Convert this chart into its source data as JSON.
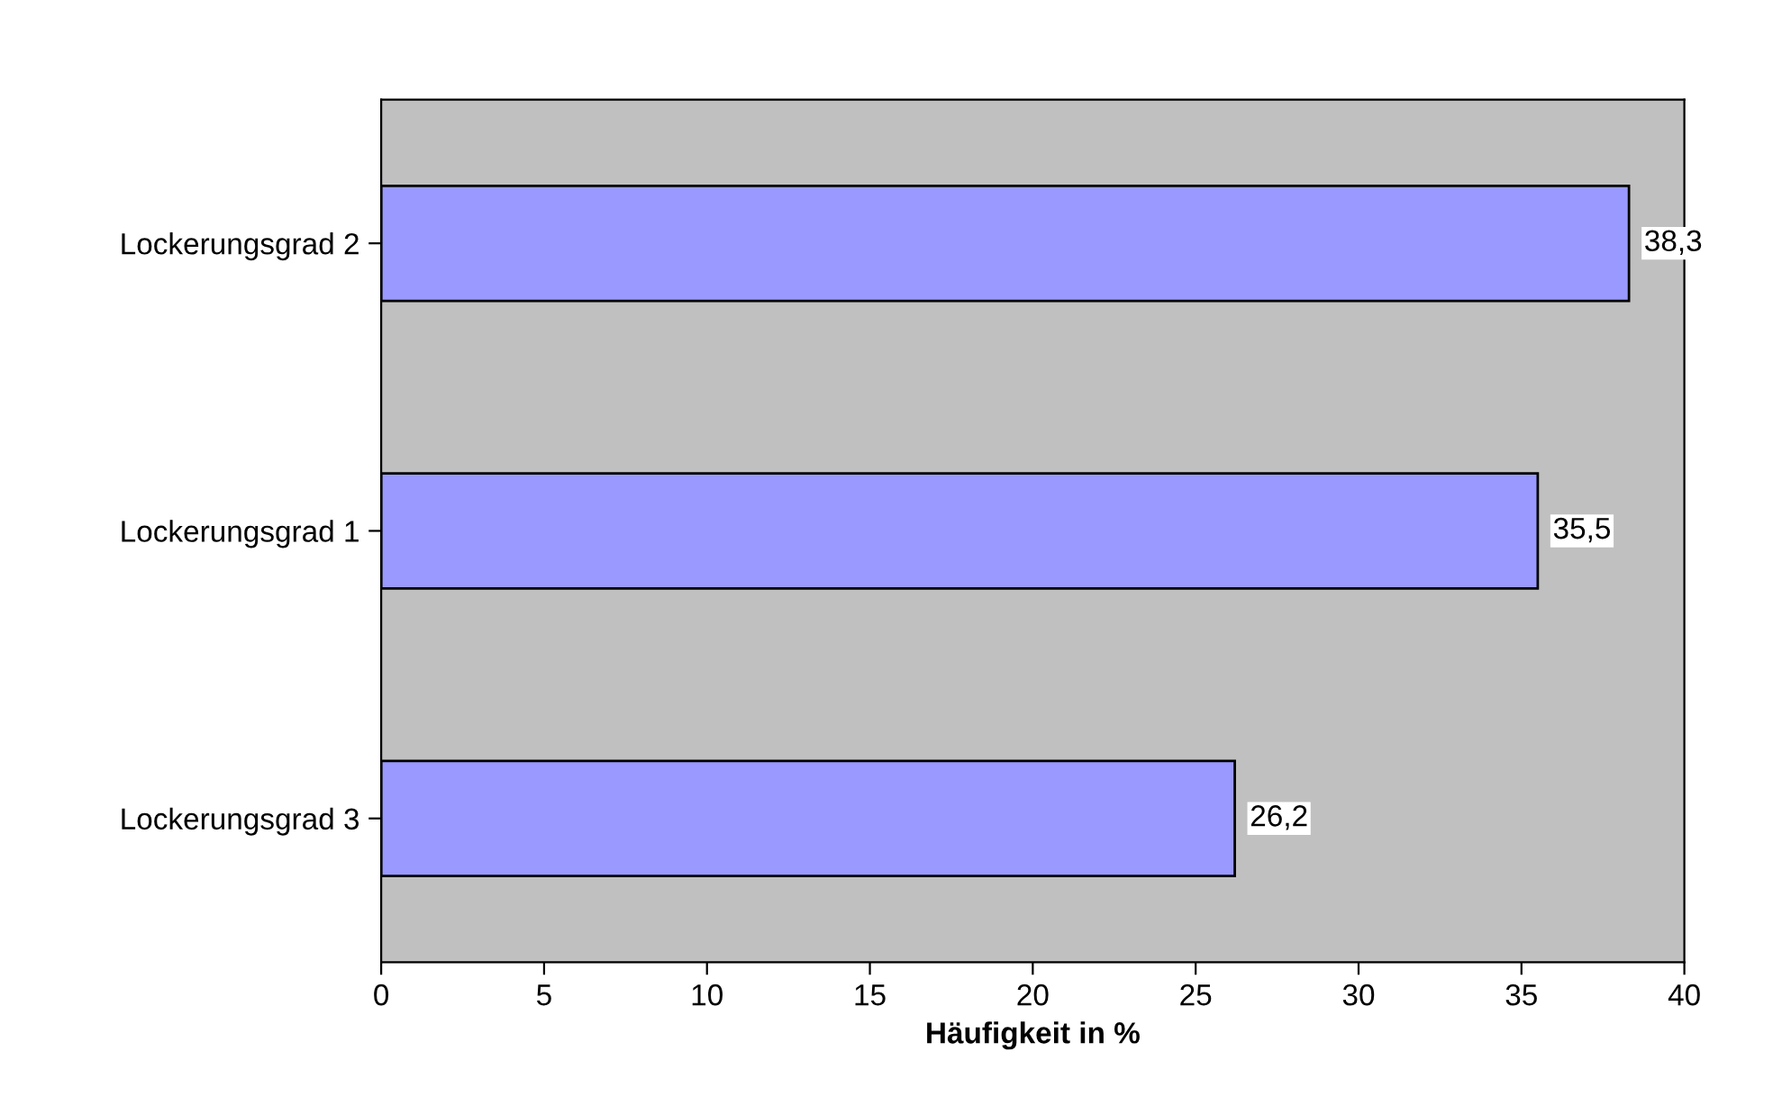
{
  "chart_data": {
    "type": "bar",
    "orientation": "horizontal",
    "categories": [
      "Lockerungsgrad 2",
      "Lockerungsgrad 1",
      "Lockerungsgrad 3"
    ],
    "values": [
      38.3,
      35.5,
      26.2
    ],
    "value_labels": [
      "38,3",
      "35,5",
      "26,2"
    ],
    "color": "#9999ff",
    "xlabel": "Häufigkeit in %",
    "xlim": [
      0,
      40
    ],
    "xticks": [
      0,
      5,
      10,
      15,
      20,
      25,
      30,
      35,
      40
    ],
    "grid": false,
    "legend": false
  }
}
